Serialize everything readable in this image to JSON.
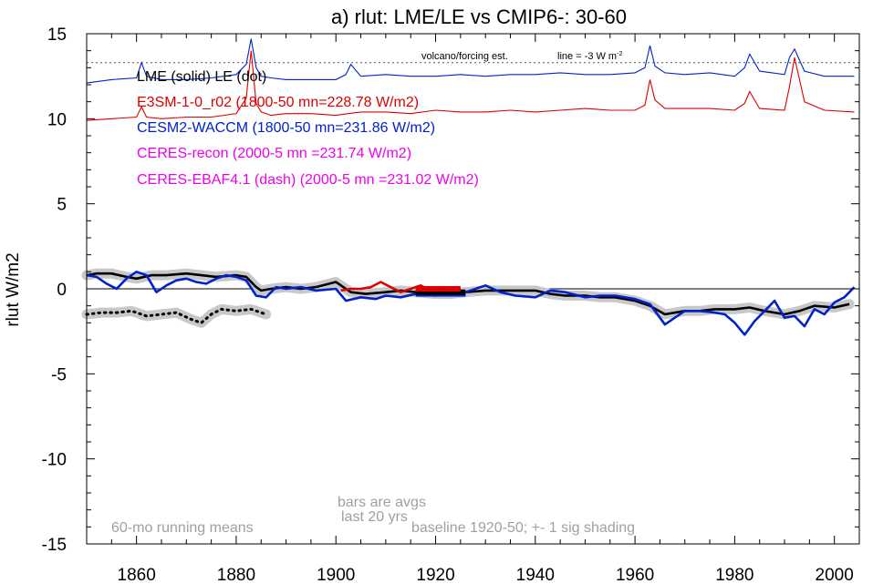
{
  "chart_data": {
    "type": "line",
    "title": "a) rlut: LME/LE vs CMIP6-: 30-60",
    "ylabel": "rlut W/m2",
    "xlabel": "",
    "xlim": [
      1850,
      2005
    ],
    "ylim": [
      -15,
      15
    ],
    "x_ticks": [
      1860,
      1880,
      1900,
      1920,
      1940,
      1960,
      1980,
      2000
    ],
    "y_ticks": [
      15,
      10,
      5,
      0,
      -5,
      -10,
      -15
    ],
    "grid": false,
    "legend": {
      "placement": "top-left",
      "header": "LME (solid)   LE (dot)",
      "entries": [
        {
          "text": "E3SM-1-0_r02 (1800-50 mn=228.78 W/m2)",
          "color": "#dd0000"
        },
        {
          "text": "CESM2-WACCM (1800-50 mn=231.86 W/m2)",
          "color": "#0022cc"
        },
        {
          "text": "CERES-recon (2000-5 mn =231.74 W/m2)",
          "color": "#ee00ee"
        },
        {
          "text": "CERES-EBAF4.1 (dash) (2000-5 mn =231.02 W/m2)",
          "color": "#ee00ee"
        }
      ]
    },
    "annotations": {
      "volcano_label": "volcano/forcing est.",
      "line_label": "line = -3 W m",
      "line_label_sup": "-2",
      "bars_note_1": "bars are avgs",
      "bars_note_2": "last 20 yrs",
      "running_means": "60-mo running means",
      "baseline": "baseline 1920-50; +- 1 sig shading"
    },
    "reference_line_y": 13.3,
    "colors": {
      "e3sm": "#dd0000",
      "cesm2": "#0022cc",
      "lme": "#000000",
      "shade": "#c8c8c8",
      "note": "#a0a0a0"
    },
    "series": [
      {
        "name": "E3SM-1-0_r02",
        "style": "thin",
        "x": [
          1850,
          1855,
          1860,
          1861,
          1862,
          1865,
          1870,
          1875,
          1880,
          1882,
          1883,
          1884,
          1885,
          1887,
          1890,
          1895,
          1900,
          1905,
          1910,
          1915,
          1920,
          1925,
          1930,
          1935,
          1940,
          1945,
          1950,
          1955,
          1960,
          1962,
          1963,
          1964,
          1966,
          1970,
          1975,
          1980,
          1982,
          1983,
          1985,
          1990,
          1991,
          1992,
          1994,
          1998,
          2004
        ],
        "values": [
          9.9,
          10.0,
          10.1,
          10.7,
          10.1,
          10.0,
          10.1,
          10.1,
          10.3,
          11.2,
          14.0,
          10.9,
          10.4,
          10.2,
          10.3,
          10.3,
          10.2,
          10.4,
          10.4,
          10.3,
          10.5,
          10.4,
          10.4,
          10.5,
          10.4,
          10.5,
          10.6,
          10.5,
          10.5,
          10.8,
          12.3,
          11.1,
          10.6,
          10.6,
          10.6,
          10.5,
          10.9,
          11.6,
          10.6,
          10.5,
          11.9,
          13.6,
          11.0,
          10.5,
          10.4
        ]
      },
      {
        "name": "CESM2-WACCM",
        "style": "thin",
        "x": [
          1850,
          1855,
          1860,
          1861,
          1862,
          1865,
          1870,
          1875,
          1880,
          1882,
          1883,
          1884,
          1885,
          1887,
          1890,
          1895,
          1900,
          1902,
          1903,
          1905,
          1910,
          1915,
          1920,
          1925,
          1930,
          1935,
          1940,
          1945,
          1950,
          1955,
          1960,
          1962,
          1963,
          1964,
          1966,
          1970,
          1975,
          1980,
          1982,
          1983,
          1985,
          1990,
          1991,
          1992,
          1994,
          1998,
          2004
        ],
        "values": [
          12.1,
          12.3,
          12.4,
          13.3,
          12.5,
          12.3,
          12.3,
          12.4,
          12.6,
          13.2,
          14.7,
          13.0,
          12.5,
          12.4,
          12.3,
          12.3,
          12.3,
          12.6,
          13.2,
          12.5,
          12.6,
          12.5,
          12.5,
          12.6,
          12.5,
          12.6,
          12.6,
          12.7,
          12.6,
          12.6,
          12.7,
          13.0,
          14.3,
          13.1,
          12.7,
          12.6,
          12.7,
          12.5,
          13.0,
          13.8,
          12.8,
          12.6,
          13.6,
          14.1,
          12.8,
          12.5,
          12.5
        ]
      },
      {
        "name": "LME",
        "style": "thick",
        "x": [
          1850,
          1852,
          1855,
          1858,
          1860,
          1863,
          1866,
          1870,
          1873,
          1876,
          1880,
          1882,
          1884,
          1885,
          1887,
          1890,
          1893,
          1896,
          1900,
          1903,
          1906,
          1910,
          1913,
          1916,
          1920,
          1923,
          1926,
          1930,
          1933,
          1936,
          1940,
          1943,
          1946,
          1950,
          1953,
          1956,
          1960,
          1963,
          1966,
          1970,
          1973,
          1976,
          1980,
          1983,
          1986,
          1990,
          1993,
          1996,
          2000,
          2003
        ],
        "values": [
          0.8,
          0.9,
          0.9,
          0.7,
          0.6,
          0.8,
          0.8,
          0.9,
          0.8,
          0.7,
          0.8,
          0.7,
          0.1,
          -0.1,
          0.0,
          0.1,
          0.0,
          0.1,
          0.4,
          -0.2,
          -0.3,
          -0.2,
          -0.1,
          -0.2,
          -0.3,
          -0.3,
          -0.2,
          -0.1,
          -0.1,
          -0.1,
          -0.1,
          -0.3,
          -0.4,
          -0.4,
          -0.5,
          -0.5,
          -0.7,
          -1.0,
          -1.5,
          -1.3,
          -1.3,
          -1.2,
          -1.2,
          -1.1,
          -1.3,
          -1.5,
          -1.3,
          -1.0,
          -1.1,
          -0.9
        ]
      },
      {
        "name": "CESM2-WACCM (60-mo)",
        "style": "thick",
        "x": [
          1850,
          1852,
          1854,
          1856,
          1858,
          1860,
          1862,
          1864,
          1866,
          1868,
          1870,
          1872,
          1874,
          1876,
          1878,
          1880,
          1882,
          1884,
          1886,
          1888,
          1890,
          1893,
          1896,
          1900,
          1902,
          1905,
          1908,
          1910,
          1913,
          1916,
          1920,
          1923,
          1926,
          1930,
          1933,
          1936,
          1940,
          1943,
          1946,
          1950,
          1953,
          1956,
          1960,
          1963,
          1966,
          1968,
          1970,
          1973,
          1976,
          1978,
          1980,
          1982,
          1984,
          1986,
          1988,
          1990,
          1992,
          1994,
          1996,
          1998,
          2000,
          2002,
          2004
        ],
        "values": [
          0.8,
          0.7,
          0.3,
          0.0,
          0.6,
          1.0,
          0.8,
          -0.2,
          0.2,
          0.5,
          0.6,
          0.4,
          0.3,
          0.6,
          0.8,
          0.7,
          0.5,
          -0.4,
          -0.5,
          0.1,
          0.0,
          0.1,
          -0.1,
          0.0,
          -0.7,
          -0.5,
          -0.6,
          -0.4,
          -0.5,
          -0.3,
          -0.4,
          -0.3,
          -0.2,
          0.2,
          -0.2,
          -0.4,
          -0.5,
          -0.1,
          -0.2,
          -0.5,
          -0.4,
          -0.4,
          -0.6,
          -0.9,
          -2.1,
          -1.7,
          -1.3,
          -1.3,
          -1.4,
          -1.5,
          -2.0,
          -2.7,
          -1.9,
          -1.3,
          -0.7,
          -1.7,
          -1.6,
          -2.2,
          -1.2,
          -1.5,
          -0.8,
          -0.5,
          0.1
        ]
      },
      {
        "name": "E3SM-1-0_r02 (60-mo)",
        "style": "thick",
        "x": [
          1901,
          1903,
          1905,
          1907,
          1909,
          1911,
          1913,
          1915,
          1917,
          1919,
          1921,
          1923,
          1925
        ],
        "values": [
          -0.1,
          0.0,
          0.0,
          0.1,
          0.4,
          0.1,
          -0.2,
          0.0,
          0.2,
          -0.1,
          0.1,
          -0.1,
          0.0
        ]
      },
      {
        "name": "LE",
        "style": "dot",
        "x": [
          1850,
          1853,
          1856,
          1859,
          1862,
          1865,
          1868,
          1871,
          1873,
          1875,
          1877,
          1880,
          1883,
          1886
        ],
        "values": [
          -1.5,
          -1.4,
          -1.4,
          -1.3,
          -1.6,
          -1.5,
          -1.4,
          -1.8,
          -2.0,
          -1.5,
          -1.2,
          -1.3,
          -1.2,
          -1.5
        ]
      }
    ],
    "bars": [
      {
        "series": "CESM2-WACCM",
        "x_start": 1916,
        "x_end": 1926,
        "value": -0.3,
        "color": "#0022cc"
      },
      {
        "series": "LME",
        "x_start": 1916,
        "x_end": 1926,
        "value": -0.2,
        "color": "#000000"
      },
      {
        "series": "E3SM-1-0_r02",
        "x_start": 1916,
        "x_end": 1925,
        "value": 0.0,
        "color": "#dd0000"
      }
    ]
  }
}
